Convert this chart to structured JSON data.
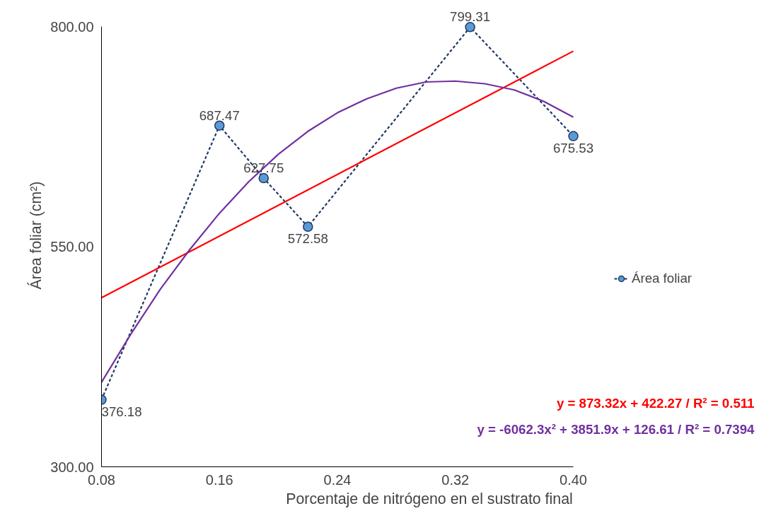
{
  "chart_data": {
    "type": "line",
    "xlabel": "Porcentaje de nitrógeno en el sustrato final",
    "ylabel": "Área foliar (cm²)",
    "x": [
      0.08,
      0.16,
      0.19,
      0.22,
      0.33,
      0.4
    ],
    "xlim": [
      0.08,
      0.4
    ],
    "xticks": [
      {
        "value": 0.08,
        "label": "0.08"
      },
      {
        "value": 0.16,
        "label": "0.16"
      },
      {
        "value": 0.24,
        "label": "0.24"
      },
      {
        "value": 0.32,
        "label": "0.32"
      },
      {
        "value": 0.4,
        "label": "0.40"
      }
    ],
    "ylim": [
      300,
      800
    ],
    "yticks": [
      {
        "value": 300,
        "label": "300.00"
      },
      {
        "value": 550,
        "label": "550.00"
      },
      {
        "value": 800,
        "label": "800.00"
      }
    ],
    "grid": false,
    "legend": "right",
    "series": [
      {
        "name": "Área foliar",
        "color": "#1f3864",
        "values": [
          376.18,
          687.47,
          627.75,
          572.58,
          799.31,
          675.53
        ],
        "value_labels": [
          "376.18",
          "687.47",
          "627.75",
          "572.58",
          "799.31",
          "675.53"
        ],
        "marker": "circle",
        "line_style": "dashed"
      },
      {
        "type": "line",
        "color": "#ff0000",
        "x": [
          0.08,
          0.4
        ],
        "values": [
          492,
          772
        ],
        "marker": "none",
        "line_style": "solid"
      },
      {
        "type": "line",
        "color": "#7030a0",
        "x": [
          0.08,
          0.1,
          0.12,
          0.14,
          0.16,
          0.18,
          0.2,
          0.22,
          0.24,
          0.26,
          0.28,
          0.3,
          0.32,
          0.34,
          0.36,
          0.38,
          0.4
        ],
        "values": [
          396,
          451,
          502,
          547,
          588,
          624,
          655,
          681,
          702,
          718,
          730,
          737,
          738,
          735,
          728,
          715,
          697
        ],
        "marker": "none",
        "line_style": "solid"
      }
    ],
    "annotations": [
      "y = 873.32x + 422.27 / R² = 0.511",
      "y = -6062.3x² + 3851.9x + 126.61 / R² = 0.7394"
    ]
  }
}
